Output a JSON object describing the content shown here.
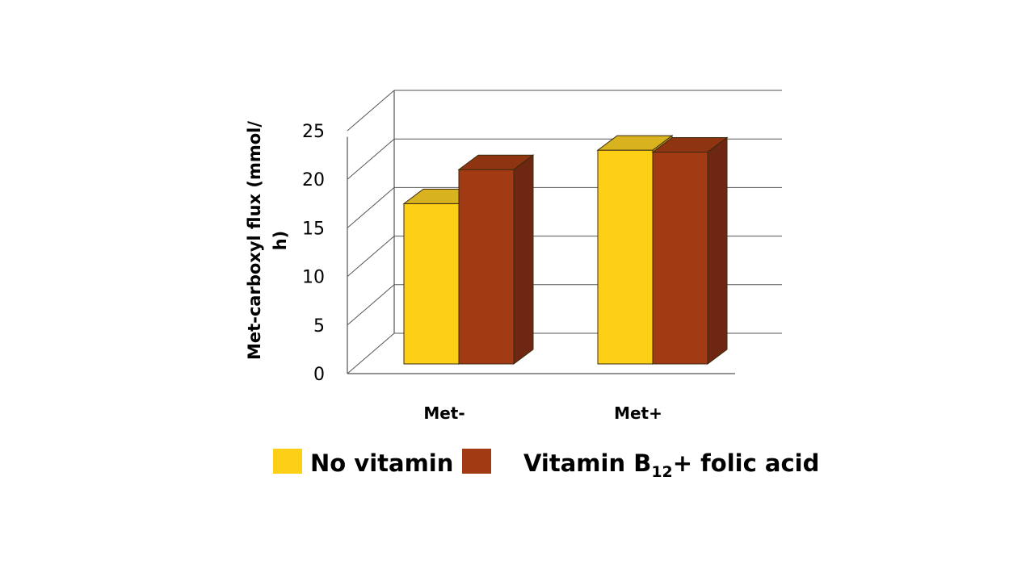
{
  "chart_data": {
    "type": "bar",
    "categories": [
      "Met-",
      "Met+"
    ],
    "series": [
      {
        "name": "No vitamin",
        "values": [
          16.5,
          22
        ],
        "color": "#FDD017",
        "top_color": "#D8B21F",
        "side_color": "#C9A414"
      },
      {
        "name": "Vitamin B12+ folic acid",
        "name_parts": [
          "Vitamin B",
          "12",
          "+ folic acid"
        ],
        "values": [
          20,
          21.8
        ],
        "color": "#A23B14",
        "top_color": "#8E3410",
        "side_color": "#6E2812"
      }
    ],
    "ylabel": [
      "Met-carboxyl flux (mmol/",
      "h)"
    ],
    "ylim": [
      0,
      25
    ],
    "yticks": [
      0,
      5,
      10,
      15,
      20,
      25
    ],
    "style": "3d-clustered-column",
    "grid": true,
    "legend_position": "bottom"
  }
}
